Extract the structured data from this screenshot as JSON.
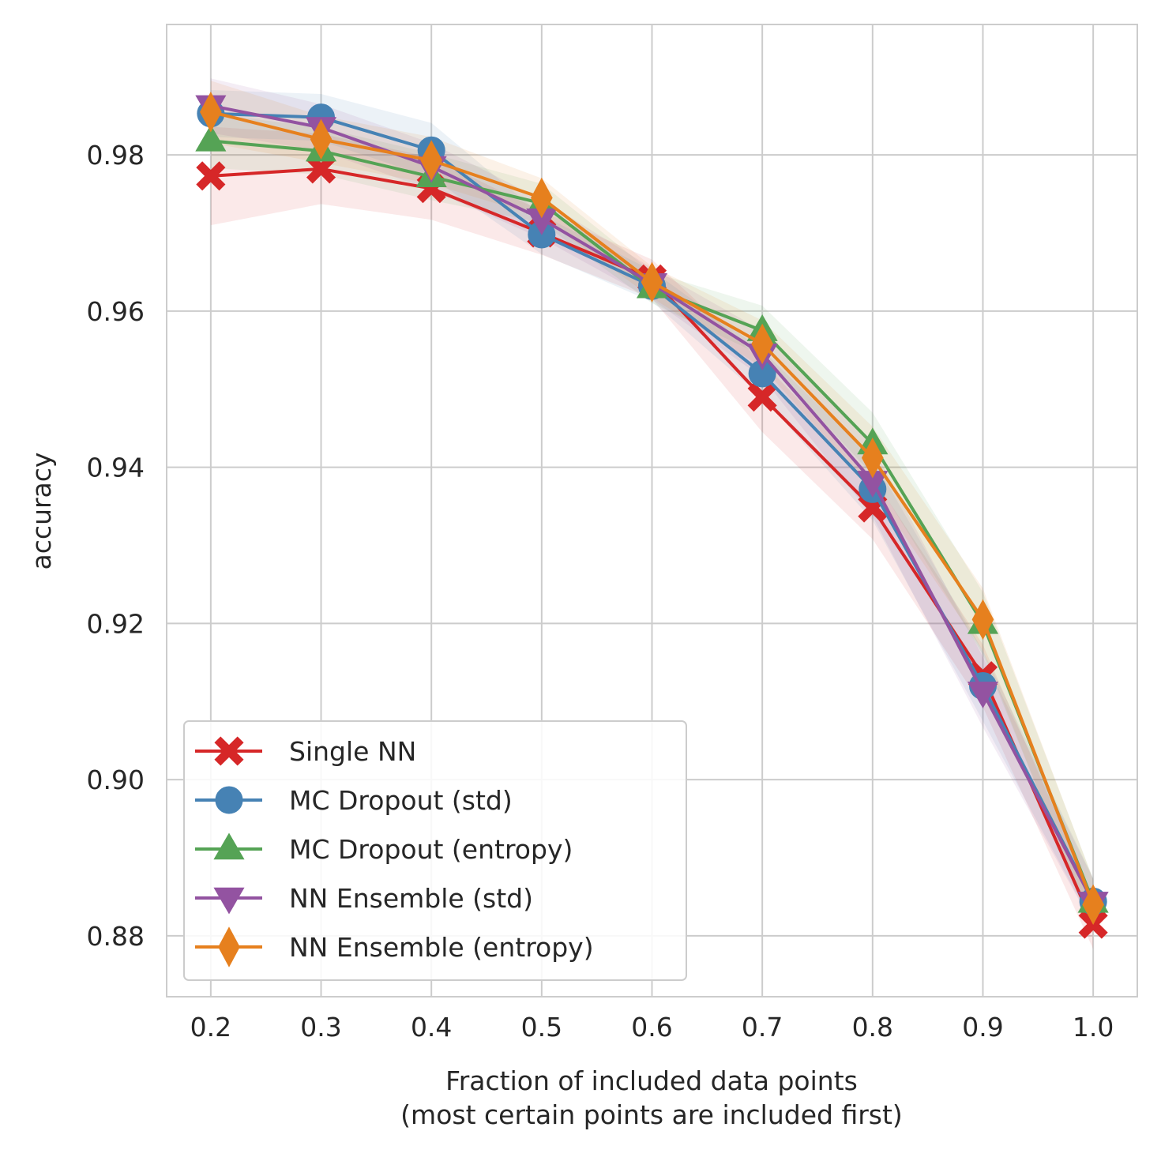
{
  "chart_data": {
    "type": "line",
    "xlabel": [
      "Fraction of included data points",
      "(most certain points are included first)"
    ],
    "ylabel": "accuracy",
    "x": [
      0.2,
      0.3,
      0.4,
      0.5,
      0.6,
      0.7,
      0.8,
      0.9,
      1.0
    ],
    "xticks": [
      "0.2",
      "0.3",
      "0.4",
      "0.5",
      "0.6",
      "0.7",
      "0.8",
      "0.9",
      "1.0"
    ],
    "yticks": [
      0.88,
      0.9,
      0.92,
      0.94,
      0.96,
      0.98
    ],
    "ytick_labels": [
      "0.88",
      "0.90",
      "0.92",
      "0.94",
      "0.96",
      "0.98"
    ],
    "xlim": [
      0.16,
      1.04
    ],
    "ylim": [
      0.8722,
      0.9967
    ],
    "grid": true,
    "legend_position": "lower-left",
    "series": [
      {
        "name": "Single NN",
        "color": "#d62728",
        "marker": "x-filled",
        "values": [
          0.9773,
          0.9782,
          0.9757,
          0.97,
          0.9641,
          0.949,
          0.9348,
          0.9133,
          0.8815
        ],
        "band": [
          0.0063,
          0.0045,
          0.004,
          0.0028,
          0.0025,
          0.0045,
          0.004,
          0.004,
          0.0032
        ]
      },
      {
        "name": "MC Dropout (std)",
        "color": "#4682b4",
        "marker": "circle",
        "values": [
          0.9853,
          0.9848,
          0.9806,
          0.9698,
          0.9632,
          0.952,
          0.9372,
          0.912,
          0.8844
        ],
        "band": [
          0.003,
          0.003,
          0.0035,
          0.0025,
          0.002,
          0.003,
          0.004,
          0.0045,
          0.003
        ]
      },
      {
        "name": "MC Dropout (entropy)",
        "color": "#55a355",
        "marker": "triangle-up",
        "values": [
          0.9818,
          0.9805,
          0.9772,
          0.9738,
          0.963,
          0.9575,
          0.943,
          0.92,
          0.8843
        ],
        "band": [
          0.0035,
          0.003,
          0.003,
          0.0025,
          0.002,
          0.0032,
          0.004,
          0.004,
          0.003
        ]
      },
      {
        "name": "NN Ensemble (std)",
        "color": "#9353a1",
        "marker": "triangle-down",
        "values": [
          0.9863,
          0.9835,
          0.9785,
          0.9718,
          0.9635,
          0.9545,
          0.9382,
          0.9112,
          0.8843
        ],
        "band": [
          0.0035,
          0.003,
          0.003,
          0.0025,
          0.002,
          0.003,
          0.0045,
          0.0045,
          0.003
        ]
      },
      {
        "name": "NN Ensemble (entropy)",
        "color": "#e6801e",
        "marker": "thin-diamond",
        "values": [
          0.9855,
          0.982,
          0.9793,
          0.9745,
          0.9637,
          0.9558,
          0.9412,
          0.9205,
          0.884
        ],
        "band": [
          0.004,
          0.003,
          0.003,
          0.0025,
          0.002,
          0.003,
          0.004,
          0.004,
          0.0032
        ]
      }
    ]
  }
}
